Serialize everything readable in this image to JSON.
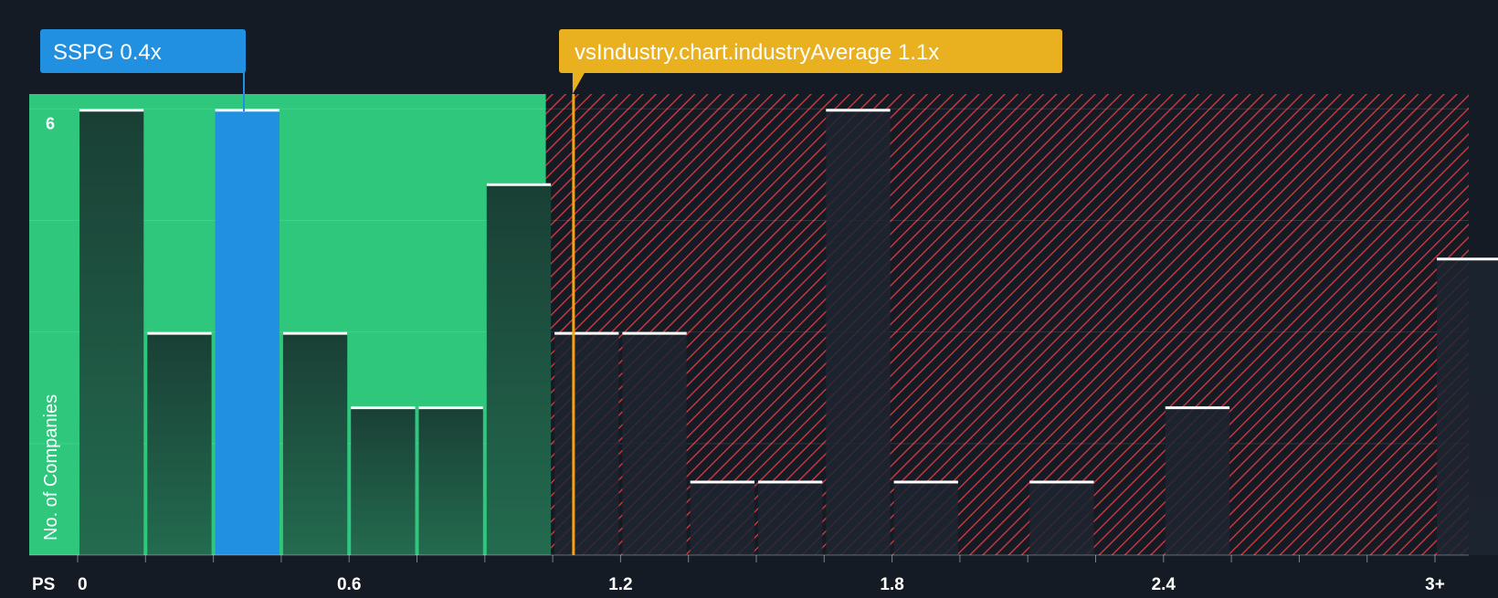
{
  "chart_data": {
    "type": "bar",
    "xlabel": "PS",
    "ylabel": "No. of Companies",
    "x_ticks": [
      "0",
      "0.6",
      "1.2",
      "1.8",
      "2.4",
      "3+"
    ],
    "x_tick_values": [
      0,
      0.6,
      1.2,
      1.8,
      2.4,
      3.0
    ],
    "y_tick_labels": [
      "6"
    ],
    "y_tick_values": [
      6
    ],
    "ylim": [
      0,
      6.2
    ],
    "xlim": [
      0,
      3.15
    ],
    "bin_width": 0.15,
    "bins": [
      {
        "x_start": 0.0,
        "x_end": 0.15,
        "value": 6
      },
      {
        "x_start": 0.15,
        "x_end": 0.3,
        "value": 3
      },
      {
        "x_start": 0.3,
        "x_end": 0.45,
        "value": 6,
        "highlight": true
      },
      {
        "x_start": 0.45,
        "x_end": 0.6,
        "value": 3
      },
      {
        "x_start": 0.6,
        "x_end": 0.75,
        "value": 2
      },
      {
        "x_start": 0.75,
        "x_end": 0.9,
        "value": 2
      },
      {
        "x_start": 0.9,
        "x_end": 1.05,
        "value": 5
      },
      {
        "x_start": 1.05,
        "x_end": 1.2,
        "value": 3
      },
      {
        "x_start": 1.2,
        "x_end": 1.35,
        "value": 3
      },
      {
        "x_start": 1.35,
        "x_end": 1.5,
        "value": 1
      },
      {
        "x_start": 1.5,
        "x_end": 1.65,
        "value": 1
      },
      {
        "x_start": 1.65,
        "x_end": 1.8,
        "value": 6
      },
      {
        "x_start": 1.8,
        "x_end": 1.95,
        "value": 1
      },
      {
        "x_start": 1.95,
        "x_end": 2.1,
        "value": 0
      },
      {
        "x_start": 2.1,
        "x_end": 2.25,
        "value": 1
      },
      {
        "x_start": 2.25,
        "x_end": 2.4,
        "value": 0
      },
      {
        "x_start": 2.4,
        "x_end": 2.55,
        "value": 2
      },
      {
        "x_start": 2.55,
        "x_end": 2.7,
        "value": 0
      },
      {
        "x_start": 2.7,
        "x_end": 2.85,
        "value": 0
      },
      {
        "x_start": 2.85,
        "x_end": 3.0,
        "value": 0
      },
      {
        "x_start": 3.0,
        "x_end": 3.15,
        "value": 4
      }
    ],
    "company": {
      "label": "SSPG 0.4x",
      "value": 0.4
    },
    "industry_average": {
      "label": "vsIndustry.chart.industryAverage 1.1x",
      "value": 1.1
    },
    "colors": {
      "background": "#151b24",
      "undervalued_zone": "#2ec77c",
      "overvalued_zone": "#c4363a",
      "bar_dark": "#1f4c3d",
      "bar_highlight": "#2290e0",
      "company_callout": "#2290e0",
      "industry_callout": "#e9b020",
      "industry_line": "#f2a31a",
      "bar_cap": "#ffffff",
      "axis_text": "#ffffff"
    }
  }
}
